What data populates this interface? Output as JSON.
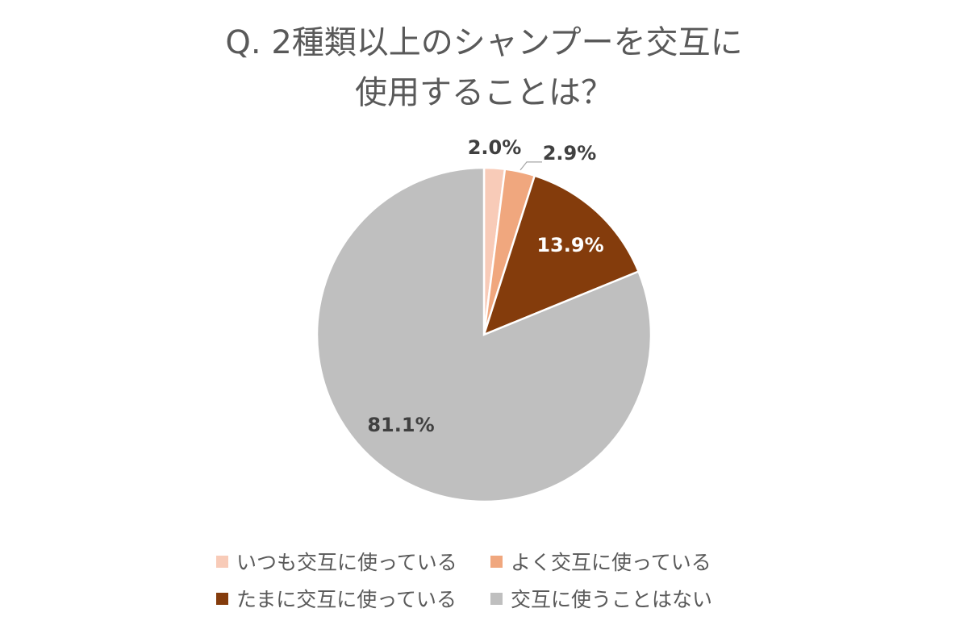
{
  "chart_data": {
    "type": "pie",
    "title_lines": [
      "Q. 2種類以上のシャンプーを交互に",
      "使用することは？"
    ],
    "slices": [
      {
        "label": "いつも交互に使っている",
        "value": 2.0,
        "display": "2.0%",
        "color": "#F8CBB8",
        "label_color": "#404040"
      },
      {
        "label": "よく交互に使っている",
        "value": 2.9,
        "display": "2.9%",
        "color": "#F0A77E",
        "label_color": "#404040"
      },
      {
        "label": "たまに交互に使っている",
        "value": 13.9,
        "display": "13.9%",
        "color": "#843C0C",
        "label_color": "#ffffff"
      },
      {
        "label": "交互に使うことはない",
        "value": 81.1,
        "display": "81.1%",
        "color": "#BFBFBF",
        "label_color": "#404040"
      }
    ],
    "legend_position": "bottom"
  }
}
